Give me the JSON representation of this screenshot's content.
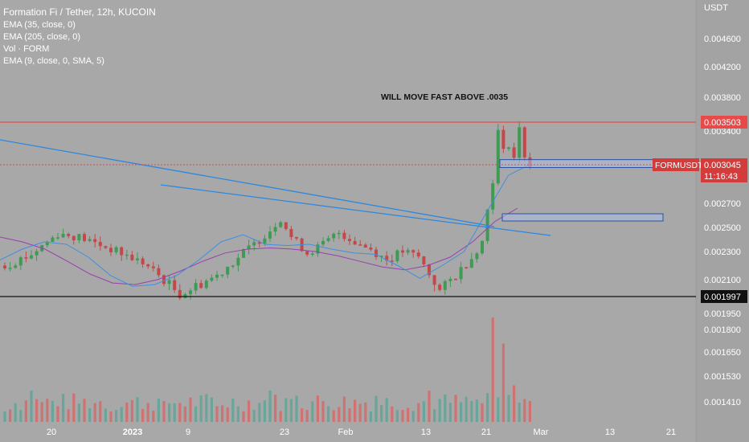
{
  "legend": {
    "symbol": "Formation Fi / Tether, 12h, KUCOIN",
    "indicators": [
      "EMA (35, close, 0)",
      "EMA (205, close, 0)",
      "Vol · FORM",
      "EMA (9, close, 0, SMA, 5)"
    ]
  },
  "annotation": "WILL MOVE FAST ABOVE .0035",
  "axis": {
    "currency": "USDT",
    "price_ticks": [
      "0.004600",
      "0.004200",
      "0.003800",
      "0.003400",
      "0.002700",
      "0.002500",
      "0.002300",
      "0.002100",
      "0.001950",
      "0.001800",
      "0.001650",
      "0.001530",
      "0.001410"
    ],
    "time_ticks": [
      "20",
      "2023",
      "9",
      "23",
      "Feb",
      "13",
      "21",
      "Mar",
      "13",
      "21"
    ]
  },
  "price_labels": {
    "resistance": "0.003503",
    "support": "0.001997",
    "current": "0.003045",
    "symbol_tag": "FORMUSDT",
    "countdown": "11:16:43"
  },
  "colors": {
    "background": "#a8a8a8",
    "up_candle": "#3f9a54",
    "down_candle": "#c44848",
    "vol_up": "#5fa596",
    "vol_down": "#d66868",
    "ema_fast": "#3f8fe0",
    "ema_slow": "#9a3fb0",
    "resistance_line": "#e84a4a",
    "support_line": "#111111",
    "trend_line": "#2e86de",
    "zone_fill": "#a9bde0",
    "zone_border": "#2c4fa3"
  },
  "chart_data": {
    "type": "candlestick",
    "title": "Formation Fi / Tether, 12h, KUCOIN",
    "ylabel": "USDT",
    "price_series": [
      {
        "x": 0,
        "close": 0.0022
      },
      {
        "x": 5,
        "close": 0.00228
      },
      {
        "x": 10,
        "close": 0.00245
      },
      {
        "x": 14,
        "close": 0.00242
      },
      {
        "x": 20,
        "close": 0.00232
      },
      {
        "x": 26,
        "close": 0.00222
      },
      {
        "x": 30,
        "close": 0.0021
      },
      {
        "x": 33,
        "close": 0.00201
      },
      {
        "x": 36,
        "close": 0.00206
      },
      {
        "x": 40,
        "close": 0.00213
      },
      {
        "x": 44,
        "close": 0.00226
      },
      {
        "x": 47,
        "close": 0.00236
      },
      {
        "x": 50,
        "close": 0.00248
      },
      {
        "x": 52,
        "close": 0.00258
      },
      {
        "x": 54,
        "close": 0.00242
      },
      {
        "x": 57,
        "close": 0.00229
      },
      {
        "x": 60,
        "close": 0.00236
      },
      {
        "x": 63,
        "close": 0.00246
      },
      {
        "x": 66,
        "close": 0.00238
      },
      {
        "x": 69,
        "close": 0.00232
      },
      {
        "x": 72,
        "close": 0.00224
      },
      {
        "x": 75,
        "close": 0.0023
      },
      {
        "x": 78,
        "close": 0.00226
      },
      {
        "x": 80,
        "close": 0.00214
      },
      {
        "x": 82,
        "close": 0.00203
      },
      {
        "x": 85,
        "close": 0.00213
      },
      {
        "x": 88,
        "close": 0.00226
      },
      {
        "x": 90,
        "close": 0.00238
      },
      {
        "x": 92,
        "close": 0.00292
      },
      {
        "x": 93,
        "close": 0.0034
      },
      {
        "x": 94,
        "close": 0.00318
      },
      {
        "x": 95,
        "close": 0.00328
      },
      {
        "x": 96,
        "close": 0.00312
      },
      {
        "x": 97,
        "close": 0.00342
      },
      {
        "x": 98,
        "close": 0.00315
      },
      {
        "x": 99,
        "close": 0.003045
      }
    ],
    "volume_series": [
      {
        "x": 0,
        "v": 0.1
      },
      {
        "x": 5,
        "v": 0.3
      },
      {
        "x": 10,
        "v": 0.15
      },
      {
        "x": 20,
        "v": 0.1
      },
      {
        "x": 30,
        "v": 0.2
      },
      {
        "x": 40,
        "v": 0.15
      },
      {
        "x": 50,
        "v": 0.3
      },
      {
        "x": 55,
        "v": 0.25
      },
      {
        "x": 60,
        "v": 0.2
      },
      {
        "x": 70,
        "v": 0.25
      },
      {
        "x": 80,
        "v": 0.3
      },
      {
        "x": 88,
        "v": 0.2
      },
      {
        "x": 92,
        "v": 1.0
      },
      {
        "x": 94,
        "v": 0.75
      },
      {
        "x": 96,
        "v": 0.35
      },
      {
        "x": 99,
        "v": 0.2
      }
    ],
    "ema_fast": [
      0.00224,
      0.00232,
      0.00238,
      0.00236,
      0.00226,
      0.00213,
      0.00206,
      0.00207,
      0.00213,
      0.00224,
      0.00238,
      0.00244,
      0.00236,
      0.00235,
      0.00236,
      0.00232,
      0.00229,
      0.00228,
      0.0022,
      0.00211,
      0.0022,
      0.0023,
      0.00262,
      0.00295,
      0.00305
    ],
    "ema_slow": [
      0.00242,
      0.00238,
      0.00232,
      0.00223,
      0.00214,
      0.00208,
      0.00207,
      0.0021,
      0.00216,
      0.00223,
      0.00229,
      0.00232,
      0.00233,
      0.00232,
      0.0023,
      0.00227,
      0.00223,
      0.00219,
      0.00217,
      0.0022,
      0.00226,
      0.00238,
      0.00255,
      0.00266
    ],
    "levels": {
      "resistance": 0.003503,
      "support": 0.001997,
      "last": 0.003045
    },
    "zones": [
      {
        "from": 0.00302,
        "to": 0.0031
      },
      {
        "from": 0.00257,
        "to": 0.00262
      }
    ]
  }
}
